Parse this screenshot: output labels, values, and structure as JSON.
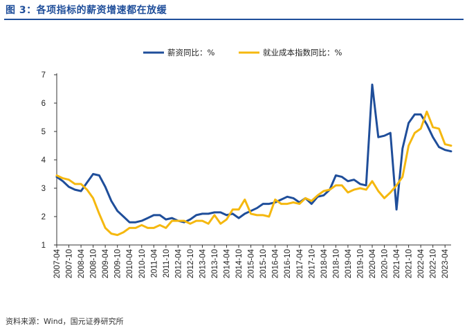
{
  "figure": {
    "title": "图 3：各项指标的薪资增速都在放缓",
    "source": "资料来源：Wind，国元证券研究所"
  },
  "chart_data": {
    "type": "line",
    "ylim": [
      1,
      7
    ],
    "yticks": [
      1,
      2,
      3,
      4,
      5,
      6,
      7
    ],
    "grid": false,
    "legend_position": "top-center",
    "x_tick_labels": [
      "2007-04",
      "2007-10",
      "2008-04",
      "2008-10",
      "2009-04",
      "2009-10",
      "2010-04",
      "2010-10",
      "2011-04",
      "2011-10",
      "2012-04",
      "2012-10",
      "2013-04",
      "2013-10",
      "2014-04",
      "2014-10",
      "2015-04",
      "2015-10",
      "2016-04",
      "2016-10",
      "2017-04",
      "2017-10",
      "2018-04",
      "2018-10",
      "2019-04",
      "2019-10",
      "2020-04",
      "2020-10",
      "2021-04",
      "2021-10",
      "2022-04",
      "2022-10",
      "2023-04"
    ],
    "x_range": [
      "2007-04",
      "2023-07"
    ],
    "series": [
      {
        "name": "薪资同比：%",
        "color": "#1f4e9a",
        "points": [
          [
            "2007-04",
            3.4
          ],
          [
            "2007-07",
            3.25
          ],
          [
            "2007-10",
            3.05
          ],
          [
            "2008-01",
            2.95
          ],
          [
            "2008-04",
            2.9
          ],
          [
            "2008-07",
            3.2
          ],
          [
            "2008-10",
            3.5
          ],
          [
            "2009-01",
            3.45
          ],
          [
            "2009-04",
            3.05
          ],
          [
            "2009-07",
            2.55
          ],
          [
            "2009-10",
            2.2
          ],
          [
            "2010-01",
            2.0
          ],
          [
            "2010-04",
            1.8
          ],
          [
            "2010-07",
            1.8
          ],
          [
            "2010-10",
            1.85
          ],
          [
            "2011-01",
            1.95
          ],
          [
            "2011-04",
            2.05
          ],
          [
            "2011-07",
            2.05
          ],
          [
            "2011-10",
            1.9
          ],
          [
            "2012-01",
            1.95
          ],
          [
            "2012-04",
            1.85
          ],
          [
            "2012-07",
            1.8
          ],
          [
            "2012-10",
            1.9
          ],
          [
            "2013-01",
            2.05
          ],
          [
            "2013-04",
            2.1
          ],
          [
            "2013-07",
            2.1
          ],
          [
            "2013-10",
            2.15
          ],
          [
            "2014-01",
            2.15
          ],
          [
            "2014-04",
            2.05
          ],
          [
            "2014-07",
            2.1
          ],
          [
            "2014-10",
            1.95
          ],
          [
            "2015-01",
            2.1
          ],
          [
            "2015-04",
            2.2
          ],
          [
            "2015-07",
            2.3
          ],
          [
            "2015-10",
            2.45
          ],
          [
            "2016-01",
            2.45
          ],
          [
            "2016-04",
            2.5
          ],
          [
            "2016-07",
            2.6
          ],
          [
            "2016-10",
            2.7
          ],
          [
            "2017-01",
            2.65
          ],
          [
            "2017-04",
            2.5
          ],
          [
            "2017-07",
            2.65
          ],
          [
            "2017-10",
            2.45
          ],
          [
            "2018-01",
            2.7
          ],
          [
            "2018-04",
            2.75
          ],
          [
            "2018-07",
            2.95
          ],
          [
            "2018-10",
            3.45
          ],
          [
            "2019-01",
            3.4
          ],
          [
            "2019-04",
            3.25
          ],
          [
            "2019-07",
            3.3
          ],
          [
            "2019-10",
            3.15
          ],
          [
            "2020-01",
            3.1
          ],
          [
            "2020-04",
            6.65
          ],
          [
            "2020-07",
            4.8
          ],
          [
            "2020-10",
            4.85
          ],
          [
            "2021-01",
            4.95
          ],
          [
            "2021-04",
            2.25
          ],
          [
            "2021-07",
            4.4
          ],
          [
            "2021-10",
            5.3
          ],
          [
            "2022-01",
            5.6
          ],
          [
            "2022-04",
            5.6
          ],
          [
            "2022-07",
            5.25
          ],
          [
            "2022-10",
            4.8
          ],
          [
            "2023-01",
            4.45
          ],
          [
            "2023-04",
            4.35
          ],
          [
            "2023-07",
            4.3
          ]
        ]
      },
      {
        "name": "就业成本指数同比：%",
        "color": "#f5b80f",
        "points": [
          [
            "2007-04",
            3.45
          ],
          [
            "2007-07",
            3.35
          ],
          [
            "2007-10",
            3.3
          ],
          [
            "2008-01",
            3.15
          ],
          [
            "2008-04",
            3.15
          ],
          [
            "2008-07",
            2.95
          ],
          [
            "2008-10",
            2.65
          ],
          [
            "2009-01",
            2.1
          ],
          [
            "2009-04",
            1.6
          ],
          [
            "2009-07",
            1.4
          ],
          [
            "2009-10",
            1.35
          ],
          [
            "2010-01",
            1.45
          ],
          [
            "2010-04",
            1.6
          ],
          [
            "2010-07",
            1.6
          ],
          [
            "2010-10",
            1.7
          ],
          [
            "2011-01",
            1.6
          ],
          [
            "2011-04",
            1.6
          ],
          [
            "2011-07",
            1.7
          ],
          [
            "2011-10",
            1.6
          ],
          [
            "2012-01",
            1.85
          ],
          [
            "2012-04",
            1.85
          ],
          [
            "2012-07",
            1.85
          ],
          [
            "2012-10",
            1.75
          ],
          [
            "2013-01",
            1.85
          ],
          [
            "2013-04",
            1.85
          ],
          [
            "2013-07",
            1.75
          ],
          [
            "2013-10",
            2.05
          ],
          [
            "2014-01",
            1.75
          ],
          [
            "2014-04",
            1.9
          ],
          [
            "2014-07",
            2.25
          ],
          [
            "2014-10",
            2.25
          ],
          [
            "2015-01",
            2.6
          ],
          [
            "2015-04",
            2.1
          ],
          [
            "2015-07",
            2.05
          ],
          [
            "2015-10",
            2.05
          ],
          [
            "2016-01",
            2.0
          ],
          [
            "2016-04",
            2.6
          ],
          [
            "2016-07",
            2.45
          ],
          [
            "2016-10",
            2.45
          ],
          [
            "2017-01",
            2.5
          ],
          [
            "2017-04",
            2.45
          ],
          [
            "2017-07",
            2.65
          ],
          [
            "2017-10",
            2.55
          ],
          [
            "2018-01",
            2.75
          ],
          [
            "2018-04",
            2.9
          ],
          [
            "2018-07",
            2.95
          ],
          [
            "2018-10",
            3.1
          ],
          [
            "2019-01",
            3.1
          ],
          [
            "2019-04",
            2.85
          ],
          [
            "2019-07",
            2.95
          ],
          [
            "2019-10",
            3.0
          ],
          [
            "2020-01",
            2.95
          ],
          [
            "2020-04",
            3.25
          ],
          [
            "2020-07",
            2.9
          ],
          [
            "2020-10",
            2.65
          ],
          [
            "2021-01",
            2.85
          ],
          [
            "2021-04",
            3.1
          ],
          [
            "2021-07",
            3.4
          ],
          [
            "2021-10",
            4.5
          ],
          [
            "2022-01",
            4.95
          ],
          [
            "2022-04",
            5.1
          ],
          [
            "2022-07",
            5.7
          ],
          [
            "2022-10",
            5.15
          ],
          [
            "2023-01",
            5.1
          ],
          [
            "2023-04",
            4.55
          ],
          [
            "2023-07",
            4.5
          ]
        ]
      }
    ]
  }
}
